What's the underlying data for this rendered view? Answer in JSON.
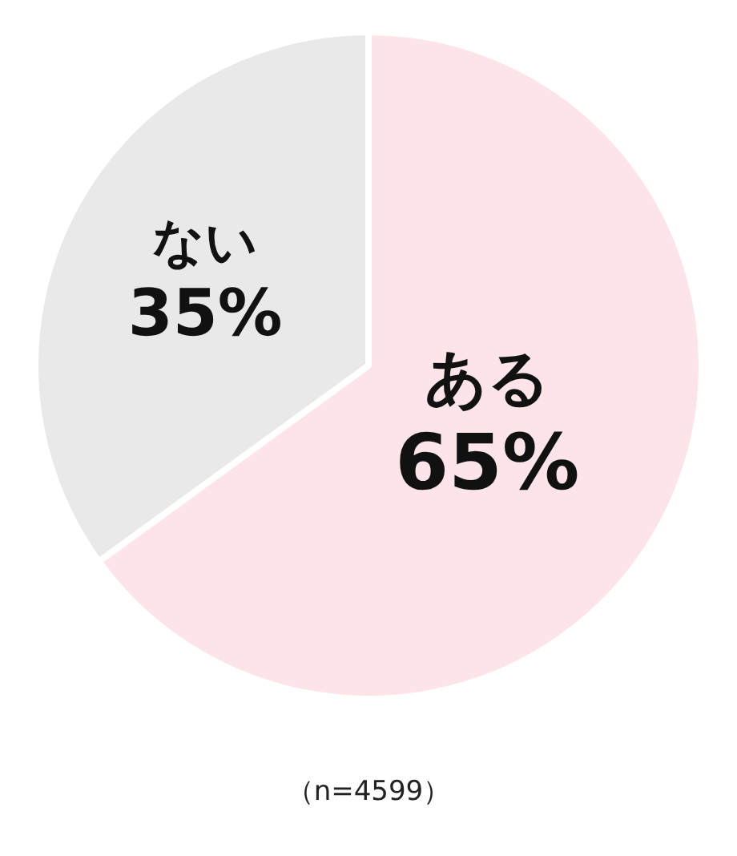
{
  "chart_data": {
    "type": "pie",
    "categories": [
      "ある",
      "ない"
    ],
    "values": [
      65,
      35
    ],
    "colors": [
      "#fde4e8",
      "#e9e9e9"
    ],
    "value_labels": [
      "65%",
      "35%"
    ],
    "legend": false,
    "annotations": [
      "（n=4599）"
    ]
  }
}
